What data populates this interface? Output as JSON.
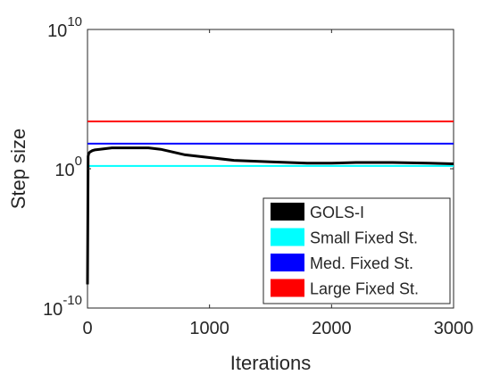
{
  "chart_data": {
    "type": "line",
    "xlabel": "Iterations",
    "ylabel": "Step size",
    "xlim": [
      0,
      3000
    ],
    "ylim_log10": [
      -10,
      10
    ],
    "yscale": "log",
    "x_ticks": [
      0,
      1000,
      2000,
      3000
    ],
    "x_tick_labels": [
      "0",
      "1000",
      "2000",
      "3000"
    ],
    "y_ticks_log10": [
      -10,
      0,
      10
    ],
    "y_tick_labels": [
      {
        "base": "10",
        "exp": "-10"
      },
      {
        "base": "10",
        "exp": "0"
      },
      {
        "base": "10",
        "exp": "10"
      }
    ],
    "grid": false,
    "legend_position": "bottom-right",
    "series": [
      {
        "name": "GOLS-I",
        "color": "#000000",
        "x": [
          0,
          5,
          10,
          20,
          40,
          60,
          100,
          200,
          300,
          400,
          500,
          600,
          700,
          800,
          1000,
          1200,
          1500,
          1800,
          2000,
          2200,
          2500,
          2800,
          3000
        ],
        "y_log10": [
          -8.3,
          0.9,
          1.1,
          1.2,
          1.3,
          1.35,
          1.4,
          1.5,
          1.5,
          1.5,
          1.5,
          1.4,
          1.2,
          1.0,
          0.8,
          0.6,
          0.5,
          0.4,
          0.4,
          0.45,
          0.45,
          0.4,
          0.35
        ]
      },
      {
        "name": "Small Fixed St.",
        "color": "#00ffff",
        "x": [
          0,
          3000
        ],
        "y_log10": [
          0.2,
          0.2
        ]
      },
      {
        "name": "Med. Fixed St.",
        "color": "#0000ff",
        "x": [
          0,
          3000
        ],
        "y_log10": [
          1.8,
          1.8
        ]
      },
      {
        "name": "Large Fixed St.",
        "color": "#ff0000",
        "x": [
          0,
          3000
        ],
        "y_log10": [
          3.4,
          3.4
        ]
      }
    ]
  }
}
